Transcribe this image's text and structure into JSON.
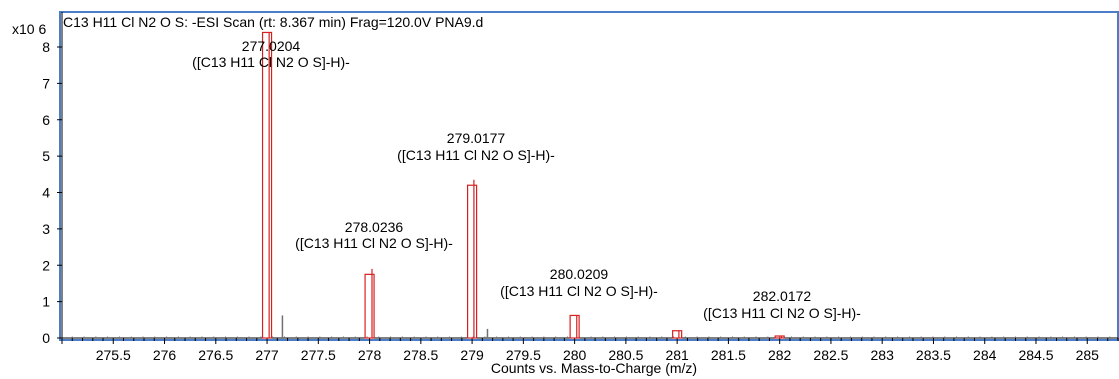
{
  "chart_data": {
    "type": "bar",
    "title": "C13 H11 Cl N2 O S: -ESI Scan (rt: 8.367 min) Frag=120.0V PNA9.d",
    "xlabel": "Counts vs. Mass-to-Charge (m/z)",
    "ylabel": "",
    "y_multiplier": "x10 6",
    "xlim": [
      275.0,
      285.3
    ],
    "ylim": [
      0,
      8.3
    ],
    "x_ticks": [
      "275.5",
      "276",
      "276.5",
      "277",
      "277.5",
      "278",
      "278.5",
      "279",
      "279.5",
      "280",
      "280.5",
      "281",
      "281.5",
      "282",
      "282.5",
      "283",
      "283.5",
      "284",
      "284.5",
      "285"
    ],
    "y_ticks": [
      "0",
      "1",
      "2",
      "3",
      "4",
      "5",
      "6",
      "7",
      "8"
    ],
    "grid": false,
    "legend": "none",
    "colors": {
      "frame": "#4a7ec9",
      "peak": "#d62020",
      "box": "#d62020",
      "noise": "#707070"
    },
    "peaks": [
      {
        "mz": 277.0204,
        "intensity": 8.4,
        "mz_label": "277.0204",
        "formula": "([C13 H11 Cl N2 O S]-H)-"
      },
      {
        "mz": 278.0236,
        "intensity": 1.9,
        "mz_label": "278.0236",
        "formula": "([C13 H11 Cl N2 O S]-H)-"
      },
      {
        "mz": 279.0177,
        "intensity": 4.35,
        "mz_label": "279.0177",
        "formula": "([C13 H11 Cl N2 O S]-H)-"
      },
      {
        "mz": 280.0209,
        "intensity": 0.62,
        "mz_label": "280.0209",
        "formula": "([C13 H11 Cl N2 O S]-H)-"
      },
      {
        "mz": 281.0172,
        "intensity": 0.2,
        "mz_label": "",
        "formula": ""
      },
      {
        "mz": 282.0172,
        "intensity": 0.04,
        "mz_label": "282.0172",
        "formula": "([C13 H11 Cl N2 O S]-H)-"
      }
    ],
    "isotope_boxes": [
      {
        "mz": 277.0,
        "intensity": 8.4
      },
      {
        "mz": 278.0,
        "intensity": 1.75
      },
      {
        "mz": 279.0,
        "intensity": 4.2
      },
      {
        "mz": 280.0,
        "intensity": 0.62
      },
      {
        "mz": 281.0,
        "intensity": 0.2
      },
      {
        "mz": 282.0,
        "intensity": 0.04
      }
    ],
    "minor_peaks": [
      {
        "mz": 277.15,
        "intensity": 0.62
      },
      {
        "mz": 279.15,
        "intensity": 0.25
      }
    ]
  }
}
